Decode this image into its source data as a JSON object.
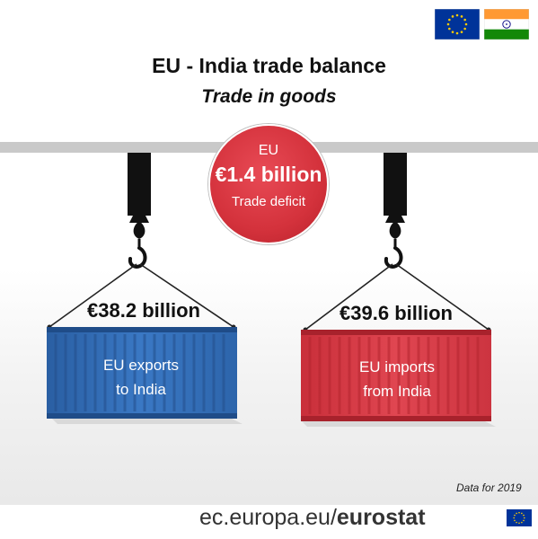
{
  "header": {
    "title": "EU - India trade balance",
    "subtitle": "Trade in goods"
  },
  "flags": {
    "eu_icon": "eu-flag-icon",
    "india_icon": "india-flag-icon"
  },
  "balance": {
    "line1": "EU",
    "amount": "€1.4 billion",
    "label": "Trade deficit",
    "color": "#d4323c"
  },
  "exports": {
    "amount": "€38.2 billion",
    "label_line1": "EU exports",
    "label_line2": "to India",
    "color": "#2f6cb5"
  },
  "imports": {
    "amount": "€39.6 billion",
    "label_line1": "EU imports",
    "label_line2": "from India",
    "color": "#d93a45"
  },
  "footer": {
    "note": "Data for 2019",
    "site_prefix": "ec.europa.eu/",
    "site_brand": "eurostat"
  }
}
